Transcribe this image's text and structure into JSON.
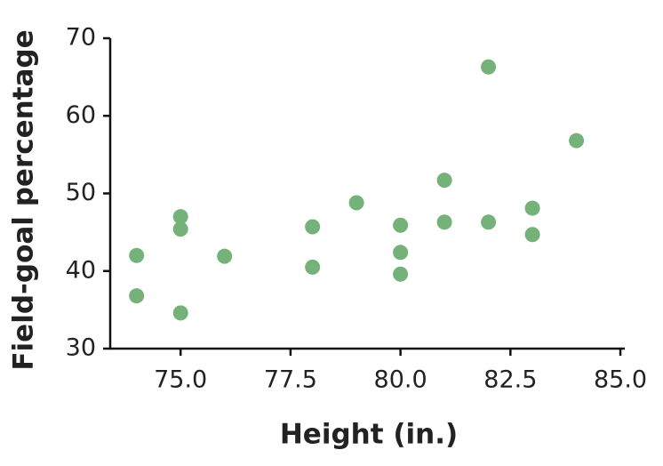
{
  "chart_data": {
    "type": "scatter",
    "x_label": "Height (in.)",
    "y_label": "Field-goal percentage",
    "x": [
      74,
      74,
      75,
      75,
      75,
      76,
      78,
      78,
      79,
      80,
      80,
      80,
      81,
      81,
      82,
      82,
      83,
      83,
      84
    ],
    "values": [
      42.0,
      36.8,
      47.0,
      45.4,
      34.6,
      41.9,
      45.7,
      40.5,
      48.8,
      45.9,
      42.4,
      39.6,
      51.7,
      46.3,
      66.3,
      46.3,
      48.1,
      44.7,
      56.8
    ],
    "color": "#74b27a",
    "xlim": [
      73.4,
      85.1
    ],
    "xticks": [
      {
        "value": 75,
        "label": "75.0"
      },
      {
        "value": 77.5,
        "label": "77.5"
      },
      {
        "value": 80,
        "label": "80.0"
      },
      {
        "value": 82.5,
        "label": "82.5"
      },
      {
        "value": 85,
        "label": "85.0"
      }
    ],
    "ylim": [
      30,
      70
    ],
    "yticks": [
      30,
      40,
      50,
      60,
      70
    ]
  }
}
